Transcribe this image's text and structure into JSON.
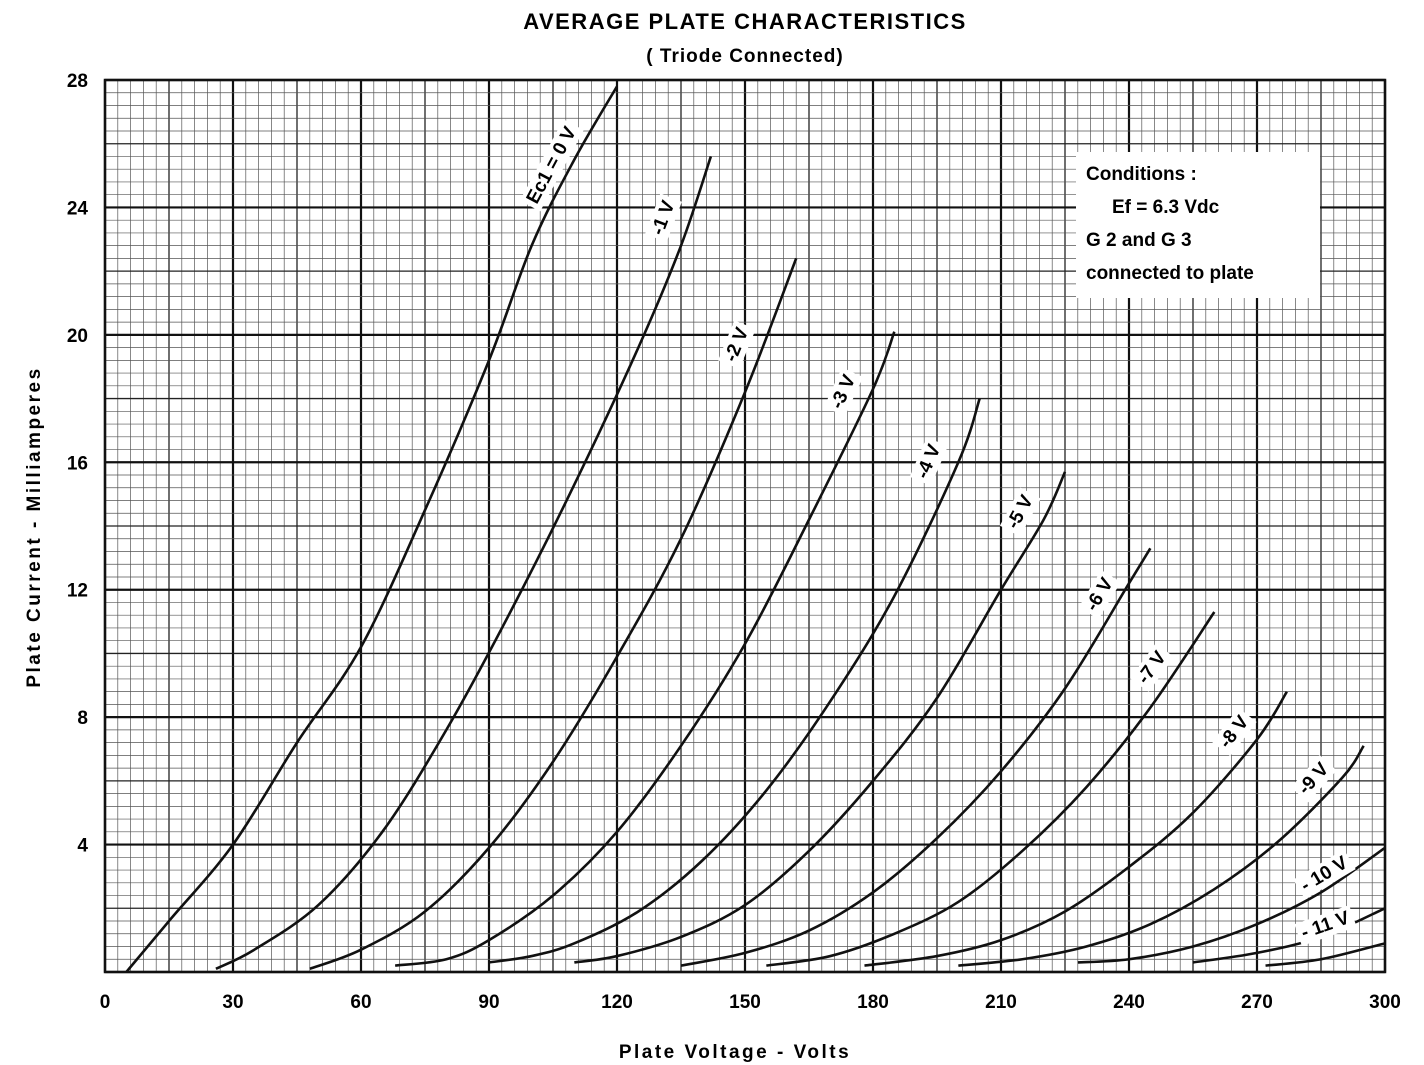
{
  "chart_data": {
    "type": "line",
    "title": "AVERAGE PLATE CHARACTERISTICS",
    "subtitle": "( Triode Connected)",
    "xlabel": "Plate Voltage - Volts",
    "ylabel": "Plate Current - Milliamperes",
    "xlim": [
      0,
      300
    ],
    "ylim": [
      0,
      28
    ],
    "xticks": [
      "0",
      "30",
      "60",
      "90",
      "120",
      "150",
      "180",
      "210",
      "240",
      "270",
      "300"
    ],
    "yticks": [
      "4",
      "8",
      "12",
      "16",
      "20",
      "24",
      "28"
    ],
    "grid": true,
    "conditions": [
      "Conditions :",
      "Ef = 6.3 Vdc",
      "G 2 and G 3",
      "connected to plate"
    ],
    "series": [
      {
        "name": "Ec1 = 0 V",
        "x": [
          5,
          15,
          30,
          45,
          60,
          75,
          90,
          100,
          110,
          120
        ],
        "y": [
          0,
          1.6,
          4,
          7.2,
          10.2,
          14.5,
          19.2,
          22.8,
          25.5,
          27.8
        ]
      },
      {
        "name": "-1 V",
        "x": [
          26,
          35,
          50,
          65,
          80,
          95,
          110,
          125,
          135,
          142
        ],
        "y": [
          0.1,
          0.7,
          2.1,
          4.4,
          7.6,
          11.3,
          15.3,
          19.6,
          22.8,
          25.6
        ]
      },
      {
        "name": "-2 V",
        "x": [
          48,
          60,
          75,
          90,
          105,
          120,
          135,
          150,
          162
        ],
        "y": [
          0.1,
          0.7,
          1.9,
          3.9,
          6.6,
          9.9,
          13.6,
          18.2,
          22.4
        ]
      },
      {
        "name": "-3 V",
        "x": [
          68,
          80,
          90,
          105,
          120,
          135,
          150,
          165,
          180,
          185
        ],
        "y": [
          0.2,
          0.4,
          1.0,
          2.4,
          4.4,
          7.1,
          10.3,
          14.2,
          18.3,
          20.1
        ]
      },
      {
        "name": "-4 V",
        "x": [
          90,
          100,
          110,
          125,
          140,
          155,
          170,
          185,
          200,
          205
        ],
        "y": [
          0.3,
          0.5,
          0.9,
          1.9,
          3.5,
          5.7,
          8.5,
          11.8,
          16.0,
          18.0
        ]
      },
      {
        "name": "-5 V",
        "x": [
          110,
          120,
          135,
          150,
          165,
          180,
          195,
          210,
          220,
          225
        ],
        "y": [
          0.3,
          0.5,
          1.1,
          2.1,
          3.8,
          6.0,
          8.6,
          12.0,
          14.2,
          15.7
        ]
      },
      {
        "name": "-6 V",
        "x": [
          135,
          150,
          165,
          180,
          195,
          210,
          225,
          240,
          245
        ],
        "y": [
          0.2,
          0.6,
          1.3,
          2.5,
          4.2,
          6.3,
          8.9,
          12.2,
          13.3
        ]
      },
      {
        "name": "-7 V",
        "x": [
          155,
          170,
          185,
          200,
          215,
          230,
          245,
          260
        ],
        "y": [
          0.2,
          0.5,
          1.2,
          2.2,
          3.8,
          5.8,
          8.3,
          11.3
        ]
      },
      {
        "name": "-8 V",
        "x": [
          178,
          195,
          210,
          225,
          240,
          255,
          270,
          277
        ],
        "y": [
          0.2,
          0.5,
          1.0,
          1.9,
          3.3,
          5.0,
          7.3,
          8.8
        ]
      },
      {
        "name": "-9 V",
        "x": [
          200,
          215,
          230,
          245,
          260,
          275,
          290,
          295
        ],
        "y": [
          0.2,
          0.4,
          0.8,
          1.5,
          2.6,
          4.1,
          6.1,
          7.1
        ]
      },
      {
        "name": "- 10 V",
        "x": [
          228,
          240,
          255,
          270,
          285,
          300
        ],
        "y": [
          0.3,
          0.4,
          0.8,
          1.5,
          2.5,
          3.9
        ]
      },
      {
        "name": "- 11 V",
        "x": [
          255,
          270,
          285,
          300
        ],
        "y": [
          0.3,
          0.6,
          1.1,
          2.0
        ]
      },
      {
        "name": "",
        "x": [
          272,
          285,
          300
        ],
        "y": [
          0.2,
          0.4,
          0.9
        ]
      }
    ]
  }
}
